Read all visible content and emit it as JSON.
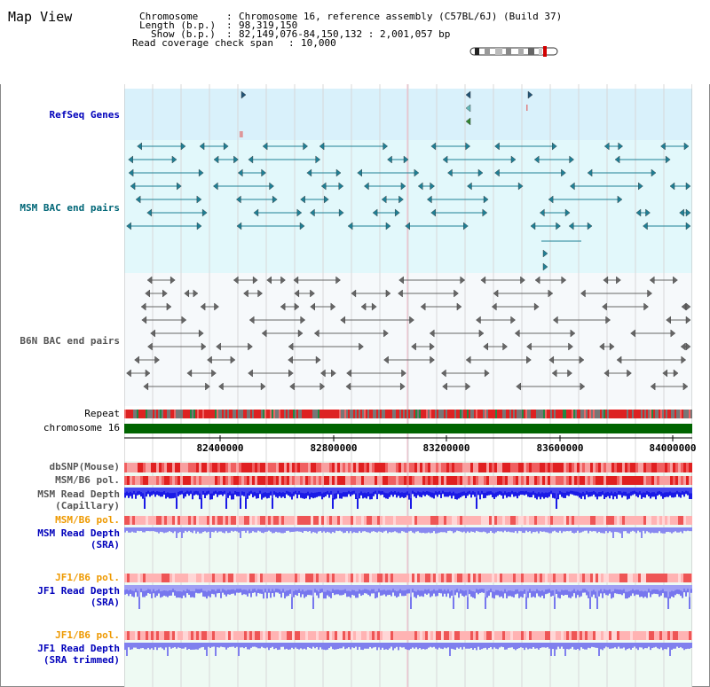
{
  "title": "Map View",
  "header": {
    "chromosome_label": "Chromosome",
    "chromosome_value": "Chromosome 16, reference assembly (C57BL/6J) (Build 37)",
    "length_label": "Length (b.p.)",
    "length_value": "98,319,150",
    "show_label": "Show (b.p.)",
    "show_value": "82,149,076-84,150,132 : 2,001,057 bp",
    "coverage_label": "Read coverage check span",
    "coverage_value": "10,000",
    "separator": ":"
  },
  "tracks": {
    "refseq": "RefSeq Genes",
    "msm_bac": "MSM BAC end pairs",
    "b6n_bac": "B6N BAC end pairs",
    "repeat": "Repeat",
    "chromosome": "chromosome 16",
    "dbsnp": "dbSNP(Mouse)",
    "msm_b6_pol": "MSM/B6 pol.",
    "msm_read_depth_cap_1": "MSM Read Depth",
    "msm_read_depth_cap_2": "(Capillary)",
    "msm_b6_pol_2": "MSM/B6 pol.",
    "msm_read_depth_sra_1": "MSM Read Depth",
    "msm_read_depth_sra_2": "(SRA)",
    "jf1_b6_pol": "JF1/B6 pol.",
    "jf1_read_depth_1": "JF1 Read Depth",
    "jf1_read_depth_2": "(SRA)",
    "jf1_b6_pol_2": "JF1/B6 pol.",
    "jf1_read_depth_trim_1": "JF1 Read Depth",
    "jf1_read_depth_trim_2": "(SRA trimmed)"
  },
  "axis": {
    "ticks": [
      "82400000",
      "82800000",
      "83200000",
      "83600000",
      "84000000"
    ]
  },
  "colors": {
    "refseq_bg": "#d9f1fb",
    "msm_bg": "#e2f8fb",
    "b6n_bg": "#f6f9fb",
    "lower_bg": "#eefaf3",
    "chrom_bar": "#006400",
    "label_blue": "#0000bb",
    "label_teal": "#006677",
    "label_gray": "#555555",
    "label_orange": "#ee9900",
    "depth_blue": "#1a1ae6",
    "depth_light": "#8888f0"
  }
}
